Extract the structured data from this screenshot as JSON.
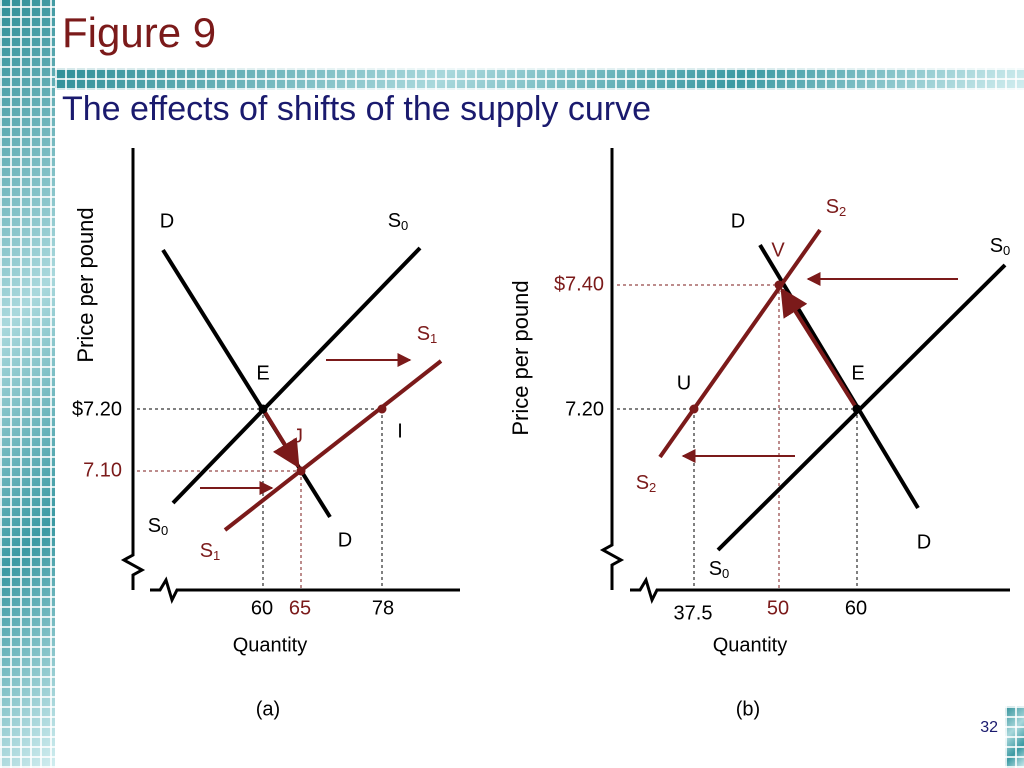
{
  "header": {
    "title": "Figure 9",
    "subtitle": "The effects of shifts of the supply curve"
  },
  "panels": [
    {
      "y_axis_label": "Price per pound",
      "x_axis_label": "Quantity",
      "caption": "(a)",
      "labels": {
        "d_top": "D",
        "s0_top": {
          "base": "S",
          "sub": "0"
        },
        "s1_top": {
          "base": "S",
          "sub": "1"
        },
        "e": "E",
        "j": "J",
        "i": "I",
        "price_high": "$7.20",
        "price_low": "7.10",
        "s0_bottom": {
          "base": "S",
          "sub": "0"
        },
        "s1_bottom": {
          "base": "S",
          "sub": "1"
        },
        "d_bottom": "D",
        "q_60": "60",
        "q_65": "65",
        "q_78": "78"
      }
    },
    {
      "y_axis_label": "Price per pound",
      "x_axis_label": "Quantity",
      "caption": "(b)",
      "labels": {
        "s2_top": {
          "base": "S",
          "sub": "2"
        },
        "d_top": "D",
        "v": "V",
        "s0_top": {
          "base": "S",
          "sub": "0"
        },
        "price_high": "$7.40",
        "e": "E",
        "u": "U",
        "price_low": "7.20",
        "s2_bottom": {
          "base": "S",
          "sub": "2"
        },
        "d_bottom": "D",
        "s0_bottom": {
          "base": "S",
          "sub": "0"
        },
        "q_37_5": "37.5",
        "q_50": "50",
        "q_60": "60"
      }
    }
  ],
  "page_number": "32"
}
